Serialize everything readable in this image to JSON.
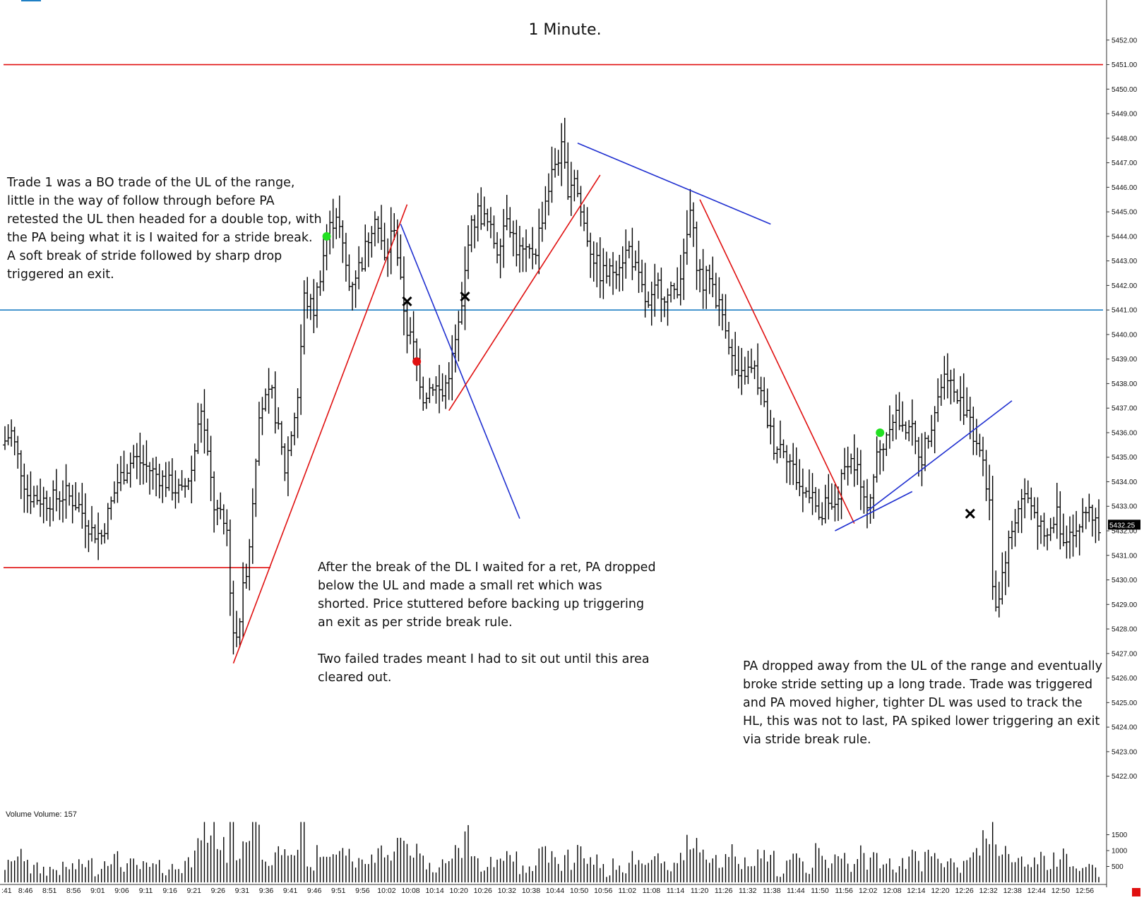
{
  "chart_data": {
    "type": "ohlc-bar",
    "title": "1 Minute.",
    "y_range": [
      5421.5,
      5453
    ],
    "y_ticks": [
      "5452.00",
      "5451.00",
      "5450.00",
      "5449.00",
      "5448.00",
      "5447.00",
      "5446.00",
      "5445.00",
      "5444.00",
      "5443.00",
      "5442.00",
      "5441.00",
      "5440.00",
      "5439.00",
      "5438.00",
      "5437.00",
      "5436.00",
      "5435.00",
      "5434.00",
      "5433.00",
      "5432.00",
      "5431.00",
      "5430.00",
      "5429.00",
      "5428.00",
      "5427.00",
      "5426.00",
      "5425.00",
      "5424.00",
      "5423.00",
      "5422.00"
    ],
    "x_ticks": [
      ":41",
      "8:46",
      "8:51",
      "8:56",
      "9:01",
      "9:06",
      "9:11",
      "9:16",
      "9:21",
      "9:26",
      "9:31",
      "9:36",
      "9:41",
      "9:46",
      "9:51",
      "9:56",
      "10:02",
      "10:08",
      "10:14",
      "10:20",
      "10:26",
      "10:32",
      "10:38",
      "10:44",
      "10:50",
      "10:56",
      "11:02",
      "11:08",
      "11:14",
      "11:20",
      "11:26",
      "11:32",
      "11:38",
      "11:44",
      "11:50",
      "11:56",
      "12:02",
      "12:08",
      "12:14",
      "12:20",
      "12:26",
      "12:32",
      "12:38",
      "12:44",
      "12:50",
      "12:56"
    ],
    "last_price_label": "5432.25",
    "last_price": 5432.25,
    "horizontal_levels": [
      {
        "price": 5451.0,
        "color": "#e01010",
        "span": "full"
      },
      {
        "price": 5441.0,
        "color": "#1f7fc4",
        "span": "full"
      },
      {
        "price": 5430.5,
        "color": "#e01010",
        "span": "left"
      }
    ],
    "price_keypoints": [
      [
        0,
        5435.5
      ],
      [
        3,
        5436
      ],
      [
        8,
        5433.5
      ],
      [
        14,
        5433.2
      ],
      [
        20,
        5433.5
      ],
      [
        24,
        5433
      ],
      [
        28,
        5432
      ],
      [
        31,
        5431.8
      ],
      [
        36,
        5434
      ],
      [
        41,
        5435
      ],
      [
        46,
        5434.5
      ],
      [
        51,
        5434
      ],
      [
        56,
        5433.5
      ],
      [
        59,
        5434.5
      ],
      [
        62,
        5437
      ],
      [
        66,
        5433
      ],
      [
        70,
        5432
      ],
      [
        72,
        5427.5
      ],
      [
        74,
        5428.5
      ],
      [
        77,
        5431.5
      ],
      [
        80,
        5437
      ],
      [
        84,
        5437.5
      ],
      [
        88,
        5434.5
      ],
      [
        92,
        5437.5
      ],
      [
        94,
        5441.5
      ],
      [
        97,
        5441
      ],
      [
        101,
        5444
      ],
      [
        104,
        5445
      ],
      [
        108,
        5442
      ],
      [
        112,
        5443
      ],
      [
        116,
        5445
      ],
      [
        119,
        5443
      ],
      [
        122,
        5444.5
      ],
      [
        124,
        5442
      ],
      [
        126,
        5440.2
      ],
      [
        128,
        5439.5
      ],
      [
        131,
        5437.5
      ],
      [
        134,
        5438
      ],
      [
        137,
        5437.5
      ],
      [
        140,
        5439
      ],
      [
        143,
        5441
      ],
      [
        145,
        5444
      ],
      [
        148,
        5445
      ],
      [
        151,
        5444.5
      ],
      [
        154,
        5443.5
      ],
      [
        157,
        5445
      ],
      [
        160,
        5443.5
      ],
      [
        163,
        5443.2
      ],
      [
        166,
        5443.5
      ],
      [
        169,
        5445.5
      ],
      [
        172,
        5447
      ],
      [
        174,
        5447.5
      ],
      [
        176,
        5446
      ],
      [
        178,
        5446.5
      ],
      [
        180,
        5445
      ],
      [
        183,
        5443.5
      ],
      [
        186,
        5442.5
      ],
      [
        189,
        5442.5
      ],
      [
        192,
        5443
      ],
      [
        195,
        5443.5
      ],
      [
        198,
        5442.2
      ],
      [
        201,
        5441
      ],
      [
        204,
        5442
      ],
      [
        207,
        5441.5
      ],
      [
        210,
        5442
      ],
      [
        212,
        5443
      ],
      [
        214,
        5445
      ],
      [
        216,
        5443
      ],
      [
        218,
        5442
      ],
      [
        220,
        5442.5
      ],
      [
        222,
        5441.5
      ],
      [
        225,
        5440.5
      ],
      [
        227,
        5439
      ],
      [
        229,
        5438
      ],
      [
        231,
        5438.5
      ],
      [
        234,
        5438.5
      ],
      [
        237,
        5437
      ],
      [
        240,
        5435.5
      ],
      [
        243,
        5435.5
      ],
      [
        246,
        5434.5
      ],
      [
        249,
        5433.5
      ],
      [
        252,
        5433.8
      ],
      [
        254,
        5432.2
      ],
      [
        256,
        5433
      ],
      [
        258,
        5432.8
      ],
      [
        260,
        5433.5
      ],
      [
        263,
        5435
      ],
      [
        266,
        5434.5
      ],
      [
        268,
        5433
      ],
      [
        270,
        5433.5
      ],
      [
        272,
        5435
      ],
      [
        274,
        5435.5
      ],
      [
        276,
        5436.5
      ],
      [
        278,
        5436.8
      ],
      [
        280,
        5436
      ],
      [
        282,
        5436.5
      ],
      [
        284,
        5435.5
      ],
      [
        286,
        5435
      ],
      [
        288,
        5436
      ],
      [
        290,
        5437
      ],
      [
        292,
        5438
      ],
      [
        294,
        5438.5
      ],
      [
        296,
        5437.5
      ],
      [
        298,
        5437.2
      ],
      [
        300,
        5437
      ],
      [
        302,
        5436
      ],
      [
        304,
        5435.5
      ],
      [
        306,
        5434
      ],
      [
        307,
        5433
      ],
      [
        308,
        5430
      ],
      [
        309,
        5429
      ],
      [
        310,
        5429.5
      ],
      [
        312,
        5431
      ],
      [
        314,
        5432
      ],
      [
        316,
        5433
      ],
      [
        318,
        5433.5
      ],
      [
        320,
        5433
      ],
      [
        322,
        5432.5
      ],
      [
        324,
        5431.5
      ],
      [
        326,
        5432
      ],
      [
        328,
        5432.8
      ],
      [
        330,
        5431.5
      ],
      [
        332,
        5432.2
      ],
      [
        334,
        5432
      ],
      [
        336,
        5432.5
      ],
      [
        338,
        5433
      ],
      [
        340,
        5432.3
      ]
    ],
    "volume_label": "Volume  Volume: 157",
    "volume_ticks": [
      "1500",
      "1000",
      "500"
    ],
    "volume_range": [
      0,
      2000
    ],
    "trendlines": [
      {
        "color": "#e01010",
        "from": [
          71,
          5426.6
        ],
        "to": [
          125,
          5445.3
        ]
      },
      {
        "color": "#1f2fd0",
        "from": [
          123,
          5444.5
        ],
        "to": [
          160,
          5432.5
        ]
      },
      {
        "color": "#e01010",
        "from": [
          138,
          5436.9
        ],
        "to": [
          185,
          5446.5
        ]
      },
      {
        "color": "#1f2fd0",
        "from": [
          178,
          5447.8
        ],
        "to": [
          238,
          5444.5
        ]
      },
      {
        "color": "#e01010",
        "from": [
          216,
          5445.5
        ],
        "to": [
          264,
          5432.3
        ]
      },
      {
        "color": "#1f2fd0",
        "from": [
          258,
          5432
        ],
        "to": [
          282,
          5433.6
        ]
      },
      {
        "color": "#1f2fd0",
        "from": [
          268,
          5432.8
        ],
        "to": [
          313,
          5437.3
        ]
      }
    ],
    "markers": [
      {
        "shape": "dot",
        "color": "#22e022",
        "bar": 100,
        "price": 5444
      },
      {
        "shape": "dot",
        "color": "#e01010",
        "bar": 128,
        "price": 5438.9
      },
      {
        "shape": "dot",
        "color": "#22e022",
        "bar": 272,
        "price": 5436
      },
      {
        "shape": "x",
        "color": "#000000",
        "bar": 125,
        "price": 5441.35
      },
      {
        "shape": "x",
        "color": "#000000",
        "bar": 143,
        "price": 5441.55
      },
      {
        "shape": "x",
        "color": "#000000",
        "bar": 300,
        "price": 5432.7
      }
    ],
    "annotations": [
      "Trade 1 was a BO trade of the UL of the range, little in the way of follow through before PA retested the UL then headed for a double top, with the PA being what it is I waited for a stride break.  A soft break of stride followed by sharp drop triggered an exit.",
      "After the break of the DL I waited for a ret, PA dropped below the UL and made a small ret which was shorted. Price stuttered before backing up triggering an exit as per stride break rule.\n\nTwo failed trades meant I had to sit out until this area cleared out.",
      "PA dropped away from the UL of the range and eventually broke stride setting up a long trade. Trade was triggered and PA moved higher, tighter DL was used to track the HL, this was not to last, PA spiked lower triggering an exit via stride break rule."
    ]
  },
  "colors": {
    "bars": "#000000",
    "red_level": "#e01010",
    "blue_level": "#1f7fc4",
    "trend_red": "#e01010",
    "trend_blue": "#1f2fd0",
    "price_box": "#000000",
    "corner_box": "#e01010"
  }
}
